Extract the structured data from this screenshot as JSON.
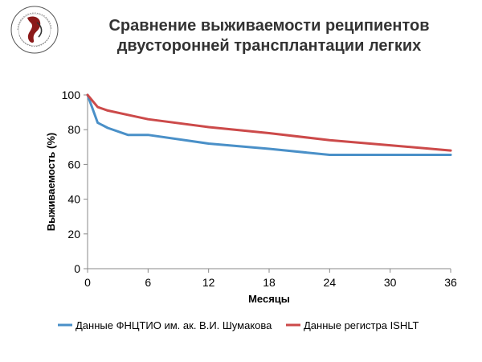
{
  "title": {
    "line1": "Сравнение выживаемости реципиентов",
    "line2": "двусторонней трансплантации легких"
  },
  "colors": {
    "series_blue": "#4a90c8",
    "series_red": "#cc4a4a",
    "axis": "#888888",
    "grid": "#cccccc"
  },
  "chart_data": {
    "type": "line",
    "title": "Сравнение выживаемости реципиентов двусторонней трансплантации легких",
    "xlabel": "Месяцы",
    "ylabel": "Выживаемость (%)",
    "xlim": [
      0,
      36
    ],
    "ylim": [
      0,
      100
    ],
    "x_ticks": [
      "0",
      "6",
      "12",
      "18",
      "24",
      "30",
      "36"
    ],
    "y_ticks": [
      "0",
      "20",
      "40",
      "60",
      "80",
      "100"
    ],
    "grid": false,
    "legend_position": "bottom",
    "series": [
      {
        "name": "Данные ФНЦТИО им. ак. В.И. Шумакова",
        "color": "#4a90c8",
        "points": [
          [
            0,
            100
          ],
          [
            1,
            84
          ],
          [
            2,
            81
          ],
          [
            4,
            77
          ],
          [
            6,
            77
          ],
          [
            12,
            72
          ],
          [
            18,
            69
          ],
          [
            24,
            65.5
          ],
          [
            30,
            65.5
          ],
          [
            36,
            65.5
          ]
        ]
      },
      {
        "name": "Данные регистра ISHLT",
        "color": "#cc4a4a",
        "points": [
          [
            0,
            100
          ],
          [
            1,
            93
          ],
          [
            2,
            91
          ],
          [
            4,
            88.5
          ],
          [
            6,
            86
          ],
          [
            12,
            81.5
          ],
          [
            18,
            78
          ],
          [
            24,
            74
          ],
          [
            30,
            71
          ],
          [
            36,
            68
          ]
        ]
      }
    ]
  }
}
